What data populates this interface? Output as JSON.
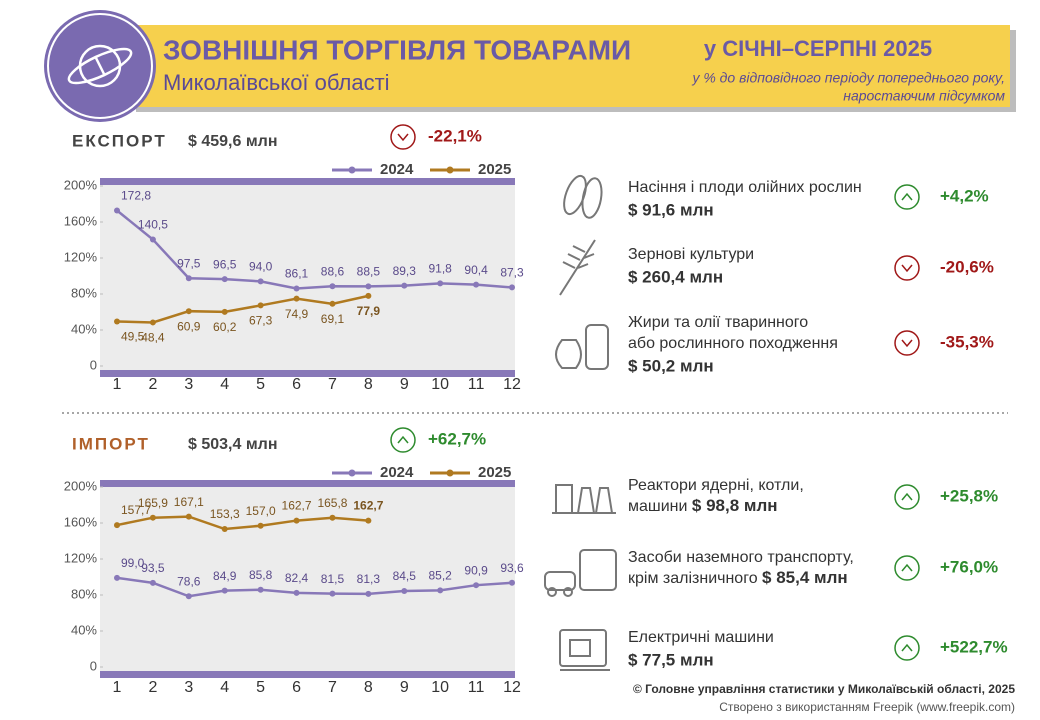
{
  "header": {
    "title": "ЗОВНІШНЯ ТОРГІВЛЯ ТОВАРАМИ",
    "subtitle": "Миколаївської області",
    "period": "у СІЧНІ–СЕРПНІ 2025",
    "note_line1": "у % до відповідного періоду попереднього року,",
    "note_line2": "наростаючим підсумком"
  },
  "chart_data": [
    {
      "type": "line",
      "title": "ЕКСПОРТ",
      "total": "$ 459,6 млн",
      "change": "-22,1%",
      "categories": [
        "1",
        "2",
        "3",
        "4",
        "5",
        "6",
        "7",
        "8",
        "9",
        "10",
        "11",
        "12"
      ],
      "series": [
        {
          "name": "2024",
          "color": "#8878b8",
          "values": [
            172.8,
            140.5,
            97.5,
            96.5,
            94.0,
            86.1,
            88.6,
            88.5,
            89.3,
            91.8,
            90.4,
            87.3
          ],
          "value_labels": [
            "172,8",
            "140,5",
            "97,5",
            "96,5",
            "94,0",
            "86,1",
            "88,6",
            "88,5",
            "89,3",
            "91,8",
            "90,4",
            "87,3"
          ]
        },
        {
          "name": "2025",
          "color": "#b07a20",
          "values": [
            49.5,
            48.4,
            60.9,
            60.2,
            67.3,
            74.9,
            69.1,
            77.9,
            null,
            null,
            null,
            null
          ],
          "value_labels": [
            "49,5",
            "48,4",
            "60,9",
            "60,2",
            "67,3",
            "74,9",
            "69,1",
            "77,9",
            null,
            null,
            null,
            null
          ]
        }
      ],
      "ylim": [
        0,
        200
      ],
      "yticks": [
        0,
        {
          "value": 40,
          "label": "40%"
        },
        {
          "value": 80,
          "label": "80%"
        },
        {
          "value": 120,
          "label": "120%"
        },
        {
          "value": 160,
          "label": "160%"
        },
        {
          "value": 200,
          "label": "200%"
        }
      ],
      "grid": false
    },
    {
      "type": "line",
      "title": "ІМПОРТ",
      "total": "$ 503,4 млн",
      "change": "+62,7%",
      "categories": [
        "1",
        "2",
        "3",
        "4",
        "5",
        "6",
        "7",
        "8",
        "9",
        "10",
        "11",
        "12"
      ],
      "series": [
        {
          "name": "2024",
          "color": "#8878b8",
          "values": [
            99.0,
            93.5,
            78.6,
            84.9,
            85.8,
            82.4,
            81.5,
            81.3,
            84.5,
            85.2,
            90.9,
            93.6
          ],
          "value_labels": [
            "99,0",
            "93,5",
            "78,6",
            "84,9",
            "85,8",
            "82,4",
            "81,5",
            "81,3",
            "84,5",
            "85,2",
            "90,9",
            "93,6"
          ]
        },
        {
          "name": "2025",
          "color": "#b07a20",
          "values": [
            157.7,
            165.9,
            167.1,
            153.3,
            157.0,
            162.7,
            165.8,
            162.7,
            null,
            null,
            null,
            null
          ],
          "value_labels": [
            "157,7",
            "165,9",
            "167,1",
            "153,3",
            "157,0",
            "162,7",
            "165,8",
            "162,7",
            null,
            null,
            null,
            null
          ]
        }
      ],
      "ylim": [
        0,
        200
      ],
      "yticks": [
        0,
        {
          "value": 40,
          "label": "40%"
        },
        {
          "value": 80,
          "label": "80%"
        },
        {
          "value": 120,
          "label": "120%"
        },
        {
          "value": 160,
          "label": "160%"
        },
        {
          "value": 200,
          "label": "200%"
        }
      ],
      "grid": false
    }
  ],
  "export_items": [
    {
      "name": [
        "Насіння і плоди олійних рослин"
      ],
      "amount": "$ 91,6 млн",
      "change": "+4,2%"
    },
    {
      "name": [
        "Зернові культури"
      ],
      "amount": "$ 260,4 млн",
      "change": "-20,6%"
    },
    {
      "name": [
        "Жири та олії тваринного",
        "або рослинного походження"
      ],
      "amount": "$ 50,2 млн",
      "change": "-35,3%"
    }
  ],
  "import_items": [
    {
      "name": [
        "Реактори ядерні, котли,",
        "машини"
      ],
      "amount": "$ 98,8 млн",
      "change": "+25,8%"
    },
    {
      "name": [
        "Засоби наземного транспорту,",
        "крім залізничного"
      ],
      "amount": "$ 85,4 млн",
      "change": "+76,0%"
    },
    {
      "name": [
        "Електричні машини"
      ],
      "amount": "$ 77,5 млн",
      "change": "+522,7%"
    }
  ],
  "footer": {
    "source": "© Головне управління статистики у Миколаївській області, 2025",
    "credit": "Створено з використанням Freepik (www.freepik.com)"
  }
}
